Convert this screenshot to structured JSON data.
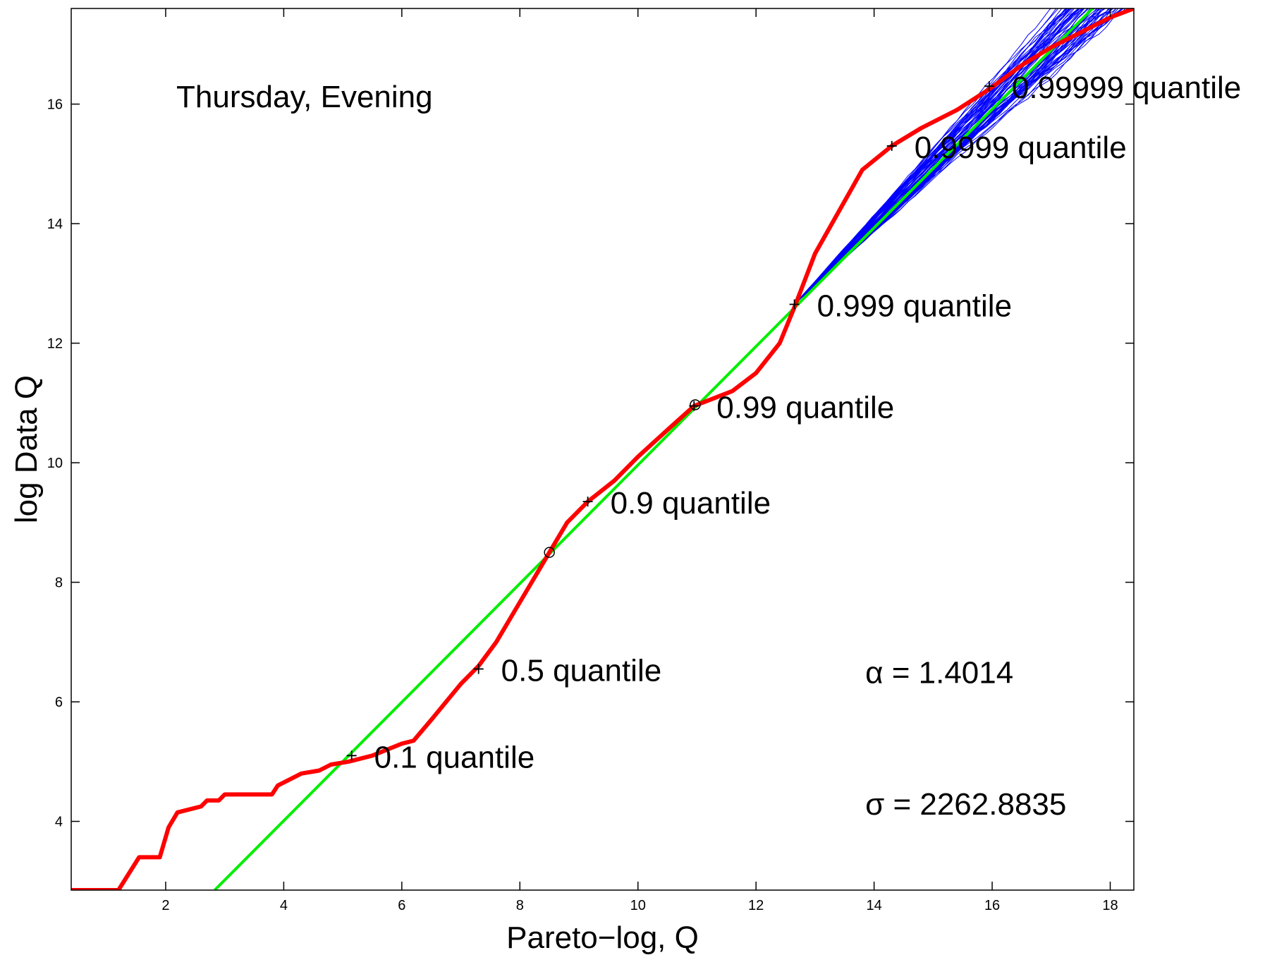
{
  "chart_data": {
    "type": "line",
    "title": "Thursday, Evening",
    "xlabel": "Pareto−log, Q",
    "ylabel": "log Data Q",
    "xlim": [
      0.4,
      18.4
    ],
    "ylim": [
      2.85,
      17.6
    ],
    "xticks": [
      2,
      4,
      6,
      8,
      10,
      12,
      14,
      16,
      18
    ],
    "yticks": [
      4,
      6,
      8,
      10,
      12,
      14,
      16
    ],
    "grid": false,
    "colors": {
      "data": "#ff0000",
      "fit": "#00ee00",
      "simulations": "#0000ff",
      "markers": "#000000"
    },
    "series": [
      {
        "role": "data",
        "x": [
          0.4,
          1.2,
          1.55,
          1.9,
          2.05,
          2.2,
          2.6,
          2.7,
          2.9,
          3.0,
          3.5,
          3.8,
          3.9,
          4.3,
          4.6,
          4.8,
          5.1,
          5.5,
          6.0,
          6.2,
          6.5,
          7.0,
          7.3,
          7.6,
          7.9,
          8.2,
          8.5,
          8.8,
          9.15,
          9.6,
          10.0,
          10.5,
          10.95,
          11.6,
          12.0,
          12.4,
          12.65,
          13.0,
          13.4,
          13.8,
          14.3,
          14.8,
          15.4,
          15.95,
          16.5,
          17.0,
          17.5,
          18.0,
          18.4
        ],
        "y": [
          2.85,
          2.85,
          3.4,
          3.4,
          3.9,
          4.15,
          4.25,
          4.35,
          4.35,
          4.45,
          4.45,
          4.45,
          4.6,
          4.8,
          4.85,
          4.95,
          5.0,
          5.1,
          5.3,
          5.35,
          5.7,
          6.3,
          6.6,
          7.0,
          7.5,
          8.0,
          8.5,
          9.0,
          9.35,
          9.7,
          10.1,
          10.55,
          10.95,
          11.2,
          11.5,
          12.0,
          12.6,
          13.5,
          14.2,
          14.9,
          15.3,
          15.6,
          15.9,
          16.25,
          16.65,
          16.95,
          17.2,
          17.45,
          17.6
        ]
      },
      {
        "role": "fit",
        "x": [
          2.83,
          17.7
        ],
        "y": [
          2.85,
          17.6
        ]
      }
    ],
    "points": [
      {
        "x": 5.15,
        "y": 5.1,
        "marker": "+",
        "label": "0.1 quantile"
      },
      {
        "x": 7.3,
        "y": 6.55,
        "marker": "+",
        "label": "0.5 quantile"
      },
      {
        "x": 9.15,
        "y": 9.35,
        "marker": "+",
        "label": "0.9 quantile"
      },
      {
        "x": 10.95,
        "y": 10.95,
        "marker": "+",
        "label": "0.99 quantile"
      },
      {
        "x": 12.65,
        "y": 12.65,
        "marker": "+",
        "label": "0.999 quantile"
      },
      {
        "x": 14.3,
        "y": 15.3,
        "marker": "+",
        "label": "0.9999 quantile"
      },
      {
        "x": 15.95,
        "y": 16.3,
        "marker": "+",
        "label": "0.99999 quantile"
      },
      {
        "x": 8.5,
        "y": 8.5,
        "marker": "o",
        "label": ""
      },
      {
        "x": 10.97,
        "y": 10.97,
        "marker": "o",
        "label": ""
      }
    ],
    "annotations": [
      {
        "text": "α = 1.4014",
        "x": 13.85,
        "y": 6.5
      },
      {
        "text": "σ = 2262.8835",
        "x": 13.85,
        "y": 4.3
      }
    ],
    "simulation_band": {
      "from_x": 12.65,
      "to_x": 18.4
    }
  }
}
